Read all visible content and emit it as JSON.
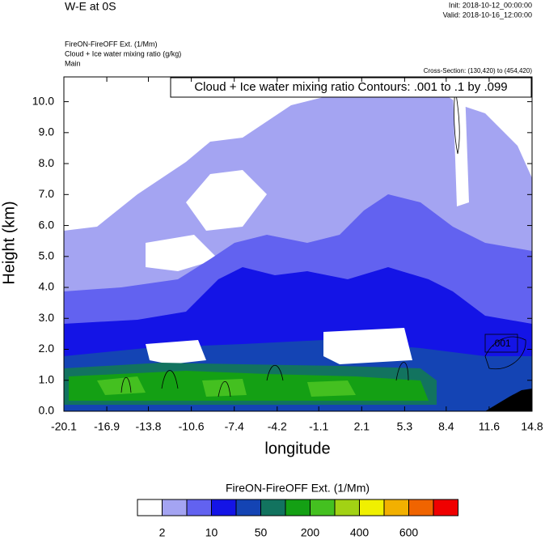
{
  "chart_data": {
    "type": "contour",
    "title": "W-E at 0S",
    "init_label": "Init: 2018-10-12_00:00:00",
    "valid_label": "Valid: 2018-10-16_12:00:00",
    "field_label": "FireON-FireOFF Ext.   (1/Mm)",
    "contour_field_label": "Cloud + Ice water mixing ratio   (g/kg)",
    "domain_label": "Main",
    "cross_section_label": "Cross-Section: (130,420) to (454,420)",
    "contour_info": "Cloud + Ice water mixing ratio Contours: .001 to .1 by .099",
    "contour_line_label": ".001",
    "x_label": "longitude",
    "y_label": "Height (km)",
    "xlim": [
      -20.1,
      14.8
    ],
    "xticks": [
      -20.1,
      -16.9,
      -13.8,
      -10.6,
      -7.4,
      -4.2,
      -1.1,
      2.1,
      5.3,
      8.4,
      11.6,
      14.8
    ],
    "ylim": [
      0,
      10.8
    ],
    "yticks": [
      {
        "value": 0,
        "label": "0.0"
      },
      {
        "value": 1,
        "label": "1.0"
      },
      {
        "value": 2,
        "label": "2.0"
      },
      {
        "value": 3,
        "label": "3.0"
      },
      {
        "value": 4,
        "label": "4.0"
      },
      {
        "value": 5,
        "label": "5.0"
      },
      {
        "value": 6,
        "label": "6.0"
      },
      {
        "value": 7,
        "label": "7.0"
      },
      {
        "value": 8,
        "label": "8.0"
      },
      {
        "value": 9,
        "label": "9.0"
      },
      {
        "value": 10,
        "label": "10.0"
      }
    ],
    "colorbar": {
      "title": "FireON-FireOFF Ext.  (1/Mm)",
      "colors": [
        "#ffffff",
        "#a4a4f2",
        "#6262f0",
        "#1414e6",
        "#1444b4",
        "#12735f",
        "#14a014",
        "#44c020",
        "#a2d214",
        "#f0f000",
        "#f2b000",
        "#f06400",
        "#f00000"
      ],
      "ticks": [
        2,
        10,
        50,
        200,
        400,
        600
      ]
    }
  }
}
